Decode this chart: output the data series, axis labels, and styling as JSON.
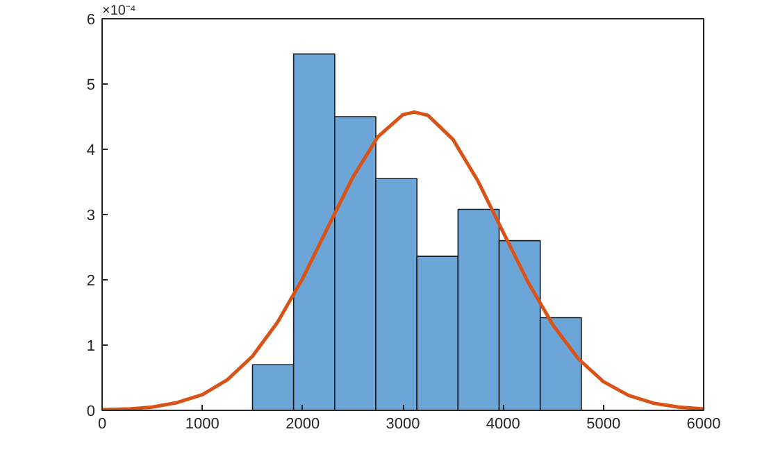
{
  "chart_data": {
    "type": "histogram",
    "bins": [
      1500,
      1910,
      2320,
      2730,
      3140,
      3550,
      3960,
      4370,
      4780
    ],
    "values": [
      0.7,
      5.46,
      4.5,
      3.55,
      2.36,
      3.08,
      2.6,
      1.42
    ],
    "color": "#6ca6d9",
    "series": [
      {
        "type": "line",
        "color": "#d95319",
        "x": [
          0,
          250,
          500,
          750,
          1000,
          1250,
          1500,
          1750,
          2000,
          2250,
          2500,
          2750,
          3000,
          3115,
          3250,
          3500,
          3750,
          4000,
          4250,
          4500,
          4750,
          5000,
          5250,
          5500,
          5750,
          6000
        ],
        "values": [
          0.01,
          0.02,
          0.05,
          0.12,
          0.24,
          0.47,
          0.83,
          1.35,
          2.02,
          2.8,
          3.57,
          4.19,
          4.53,
          4.57,
          4.52,
          4.15,
          3.51,
          2.73,
          1.96,
          1.3,
          0.79,
          0.44,
          0.23,
          0.11,
          0.05,
          0.02
        ]
      }
    ],
    "xlim": [
      0,
      6000
    ],
    "ylim": [
      0,
      6
    ],
    "xticks": [
      0,
      1000,
      2000,
      3000,
      4000,
      5000,
      6000
    ],
    "yticks": [
      0,
      1,
      2,
      3,
      4,
      5,
      6
    ],
    "grid": false,
    "annotations": [
      "×10⁻⁴"
    ]
  }
}
